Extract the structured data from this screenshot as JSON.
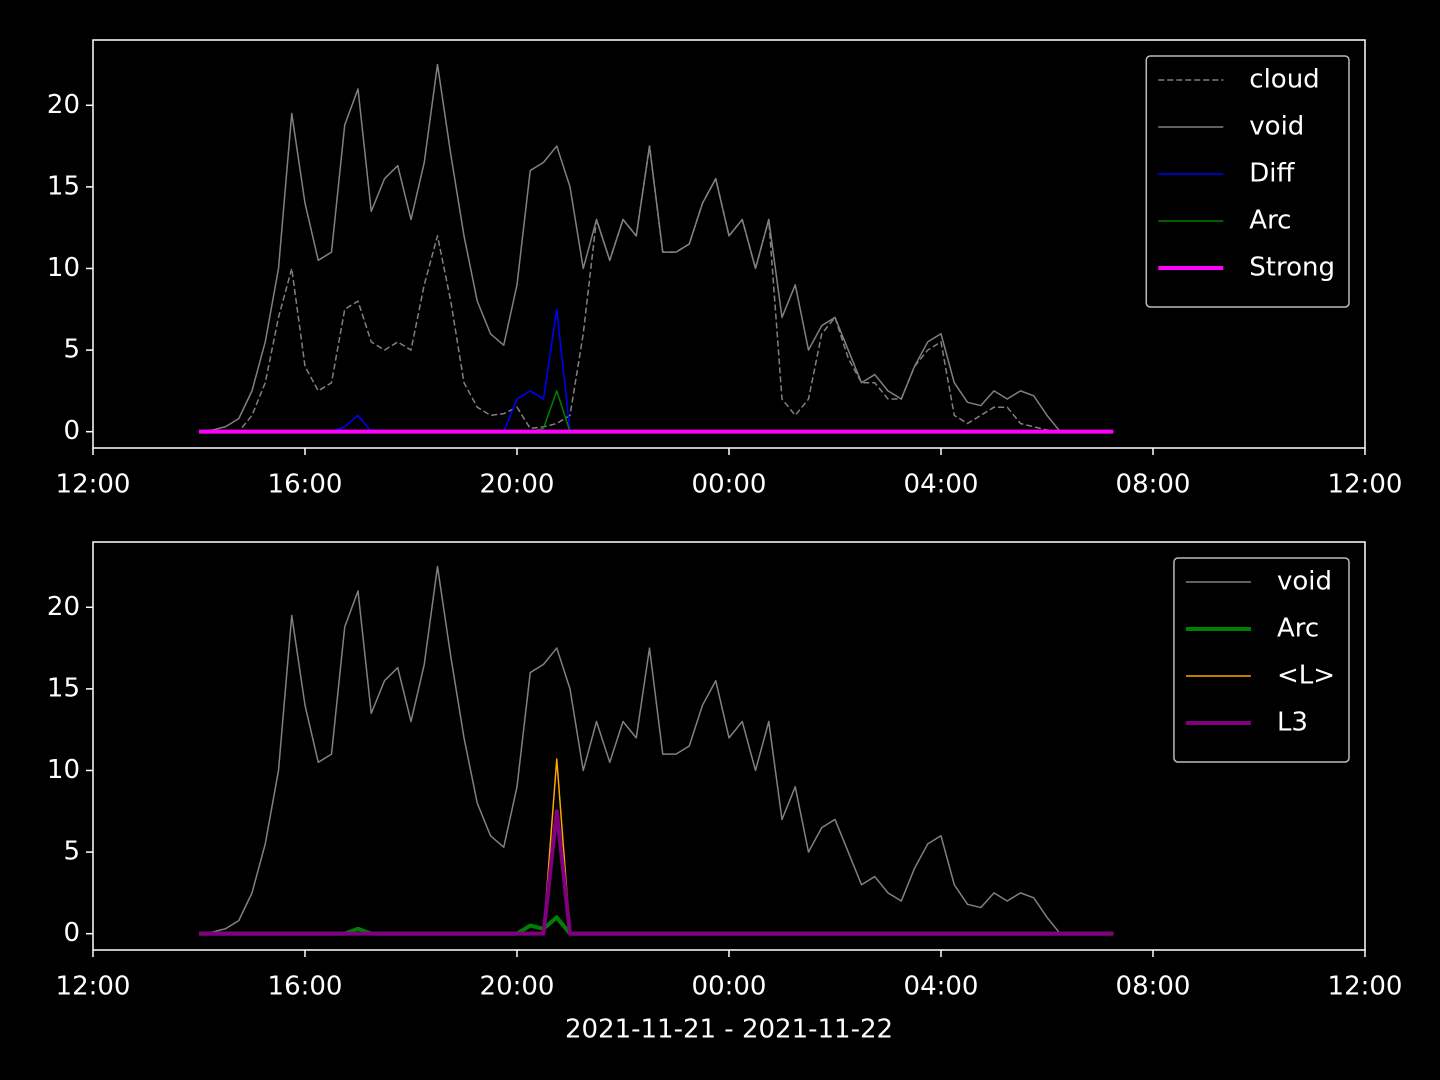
{
  "chart_data": [
    {
      "type": "line",
      "legend": "upper right",
      "xlim": [
        0,
        24
      ],
      "ylim": [
        -1,
        24
      ],
      "xticks": [
        {
          "value": 0,
          "label": "12:00"
        },
        {
          "value": 4,
          "label": "16:00"
        },
        {
          "value": 8,
          "label": "20:00"
        },
        {
          "value": 12,
          "label": "00:00"
        },
        {
          "value": 16,
          "label": "04:00"
        },
        {
          "value": 20,
          "label": "08:00"
        },
        {
          "value": 24,
          "label": "12:00"
        }
      ],
      "yticks": [
        0,
        5,
        10,
        15,
        20
      ],
      "x": [
        2,
        2.25,
        2.5,
        2.75,
        3,
        3.25,
        3.5,
        3.75,
        4,
        4.25,
        4.5,
        4.75,
        5,
        5.25,
        5.5,
        5.75,
        6,
        6.25,
        6.5,
        6.75,
        7,
        7.25,
        7.5,
        7.75,
        8,
        8.25,
        8.5,
        8.75,
        9,
        9.25,
        9.5,
        9.75,
        10,
        10.25,
        10.5,
        10.75,
        11,
        11.25,
        11.5,
        11.75,
        12,
        12.25,
        12.5,
        12.75,
        13,
        13.25,
        13.5,
        13.75,
        14,
        14.25,
        14.5,
        14.75,
        15,
        15.25,
        15.5,
        15.75,
        16,
        16.25,
        16.5,
        16.75,
        17,
        17.25,
        17.5,
        17.75,
        18,
        18.25,
        18.5,
        18.75,
        19,
        19.25
      ],
      "series": [
        {
          "name": "cloud",
          "color": "#808080",
          "width": 1.5,
          "dash": true,
          "values": [
            0,
            0,
            0,
            0,
            1,
            3,
            7,
            10,
            4,
            2.5,
            3,
            7.5,
            8,
            5.5,
            5,
            5.5,
            5,
            9,
            12,
            8,
            3,
            1.5,
            1,
            1.1,
            1.5,
            0.2,
            0.3,
            0.5,
            1,
            6,
            13,
            10.5,
            13,
            12,
            17.5,
            11,
            11,
            11.5,
            14,
            15.5,
            12,
            13,
            10,
            13,
            2,
            1,
            2,
            6,
            7,
            4.5,
            3,
            3,
            2,
            2,
            4,
            5,
            5.5,
            1,
            0.5,
            1,
            1.5,
            1.5,
            0.5,
            0.3,
            0.1,
            0,
            0,
            0,
            0,
            0
          ]
        },
        {
          "name": "void",
          "color": "#808080",
          "width": 1.5,
          "dash": false,
          "values": [
            0,
            0.1,
            0.3,
            0.8,
            2.5,
            5.5,
            10,
            19.5,
            14,
            10.5,
            11,
            18.8,
            21,
            13.5,
            15.5,
            16.3,
            13,
            16.5,
            22.5,
            17,
            12,
            8,
            6,
            5.3,
            9,
            16,
            16.5,
            17.5,
            15,
            10,
            13,
            10.5,
            13,
            12,
            17.5,
            11,
            11,
            11.5,
            14,
            15.5,
            12,
            13,
            10,
            13,
            7,
            9,
            5,
            6.5,
            7,
            5,
            3,
            3.5,
            2.5,
            2,
            4,
            5.5,
            6,
            3,
            1.8,
            1.6,
            2.5,
            2,
            2.5,
            2.2,
            1,
            0,
            0,
            0,
            0,
            0
          ]
        },
        {
          "name": "Diff",
          "color": "#0000ff",
          "width": 1.5,
          "dash": false,
          "values": [
            0,
            0,
            0,
            0,
            0,
            0,
            0,
            0,
            0,
            0,
            0,
            0.3,
            1,
            0,
            0,
            0,
            0,
            0,
            0,
            0,
            0,
            0,
            0,
            0,
            2,
            2.5,
            2,
            7.5,
            0,
            0,
            0,
            0,
            0,
            0,
            0,
            0,
            0,
            0,
            0,
            0,
            0,
            0,
            0,
            0,
            0,
            0,
            0,
            0,
            0,
            0,
            0,
            0,
            0,
            0,
            0,
            0,
            0,
            0,
            0,
            0,
            0,
            0,
            0,
            0,
            0,
            0,
            0,
            0,
            0,
            0
          ]
        },
        {
          "name": "Arc",
          "color": "#008000",
          "width": 1.5,
          "dash": false,
          "values": [
            0,
            0,
            0,
            0,
            0,
            0,
            0,
            0,
            0,
            0,
            0,
            0,
            0,
            0,
            0,
            0,
            0,
            0,
            0,
            0,
            0,
            0,
            0,
            0,
            0,
            0,
            0.2,
            2.5,
            0,
            0,
            0,
            0,
            0,
            0,
            0,
            0,
            0,
            0,
            0,
            0,
            0,
            0,
            0,
            0,
            0,
            0,
            0,
            0,
            0,
            0,
            0,
            0,
            0,
            0,
            0,
            0,
            0,
            0,
            0,
            0,
            0,
            0,
            0,
            0,
            0,
            0,
            0,
            0,
            0,
            0
          ]
        },
        {
          "name": "Strong",
          "color": "#ff00ff",
          "width": 4,
          "dash": false,
          "values": [
            0,
            0,
            0,
            0,
            0,
            0,
            0,
            0,
            0,
            0,
            0,
            0,
            0,
            0,
            0,
            0,
            0,
            0,
            0,
            0,
            0,
            0,
            0,
            0,
            0,
            0,
            0,
            0,
            0,
            0,
            0,
            0,
            0,
            0,
            0,
            0,
            0,
            0,
            0,
            0,
            0,
            0,
            0,
            0,
            0,
            0,
            0,
            0,
            0,
            0,
            0,
            0,
            0,
            0,
            0,
            0,
            0,
            0,
            0,
            0,
            0,
            0,
            0,
            0,
            0,
            0,
            0,
            0,
            0,
            0
          ]
        }
      ]
    },
    {
      "type": "line",
      "legend": "upper right",
      "xlabel": "2021-11-21 - 2021-11-22",
      "xlim": [
        0,
        24
      ],
      "ylim": [
        -1,
        24
      ],
      "xticks": [
        {
          "value": 0,
          "label": "12:00"
        },
        {
          "value": 4,
          "label": "16:00"
        },
        {
          "value": 8,
          "label": "20:00"
        },
        {
          "value": 12,
          "label": "00:00"
        },
        {
          "value": 16,
          "label": "04:00"
        },
        {
          "value": 20,
          "label": "08:00"
        },
        {
          "value": 24,
          "label": "12:00"
        }
      ],
      "yticks": [
        0,
        5,
        10,
        15,
        20
      ],
      "x": [
        2,
        2.25,
        2.5,
        2.75,
        3,
        3.25,
        3.5,
        3.75,
        4,
        4.25,
        4.5,
        4.75,
        5,
        5.25,
        5.5,
        5.75,
        6,
        6.25,
        6.5,
        6.75,
        7,
        7.25,
        7.5,
        7.75,
        8,
        8.25,
        8.5,
        8.75,
        9,
        9.25,
        9.5,
        9.75,
        10,
        10.25,
        10.5,
        10.75,
        11,
        11.25,
        11.5,
        11.75,
        12,
        12.25,
        12.5,
        12.75,
        13,
        13.25,
        13.5,
        13.75,
        14,
        14.25,
        14.5,
        14.75,
        15,
        15.25,
        15.5,
        15.75,
        16,
        16.25,
        16.5,
        16.75,
        17,
        17.25,
        17.5,
        17.75,
        18,
        18.25,
        18.5,
        18.75,
        19,
        19.25
      ],
      "series": [
        {
          "name": "void",
          "color": "#808080",
          "width": 1.5,
          "dash": false,
          "values": [
            0,
            0.1,
            0.3,
            0.8,
            2.5,
            5.5,
            10,
            19.5,
            14,
            10.5,
            11,
            18.8,
            21,
            13.5,
            15.5,
            16.3,
            13,
            16.5,
            22.5,
            17,
            12,
            8,
            6,
            5.3,
            9,
            16,
            16.5,
            17.5,
            15,
            10,
            13,
            10.5,
            13,
            12,
            17.5,
            11,
            11,
            11.5,
            14,
            15.5,
            12,
            13,
            10,
            13,
            7,
            9,
            5,
            6.5,
            7,
            5,
            3,
            3.5,
            2.5,
            2,
            4,
            5.5,
            6,
            3,
            1.8,
            1.6,
            2.5,
            2,
            2.5,
            2.2,
            1,
            0,
            0,
            0,
            0,
            0
          ]
        },
        {
          "name": "Arc",
          "color": "#008000",
          "width": 4,
          "dash": false,
          "values": [
            0,
            0,
            0,
            0,
            0,
            0,
            0,
            0,
            0,
            0,
            0,
            0,
            0.3,
            0,
            0,
            0,
            0,
            0,
            0,
            0,
            0,
            0,
            0,
            0,
            0,
            0.5,
            0.3,
            1,
            0,
            0,
            0,
            0,
            0,
            0,
            0,
            0,
            0,
            0,
            0,
            0,
            0,
            0,
            0,
            0,
            0,
            0,
            0,
            0,
            0,
            0,
            0,
            0,
            0,
            0,
            0,
            0,
            0,
            0,
            0,
            0,
            0,
            0,
            0,
            0,
            0,
            0,
            0,
            0,
            0,
            0
          ]
        },
        {
          "name": "<L>",
          "color": "#ffa500",
          "width": 1.5,
          "dash": false,
          "values": [
            0,
            0,
            0,
            0,
            0,
            0,
            0,
            0,
            0,
            0,
            0,
            0,
            0,
            0,
            0,
            0,
            0,
            0,
            0,
            0,
            0,
            0,
            0,
            0,
            0,
            0,
            0,
            10.7,
            0,
            0,
            0,
            0,
            0,
            0,
            0,
            0,
            0,
            0,
            0,
            0,
            0,
            0,
            0,
            0,
            0,
            0,
            0,
            0,
            0,
            0,
            0,
            0,
            0,
            0,
            0,
            0,
            0,
            0,
            0,
            0,
            0,
            0,
            0,
            0,
            0,
            0,
            0,
            0,
            0,
            0
          ]
        },
        {
          "name": "L3",
          "color": "#800080",
          "width": 4,
          "dash": false,
          "values": [
            0,
            0,
            0,
            0,
            0,
            0,
            0,
            0,
            0,
            0,
            0,
            0,
            0,
            0,
            0,
            0,
            0,
            0,
            0,
            0,
            0,
            0,
            0,
            0,
            0,
            0,
            0,
            7.5,
            0,
            0,
            0,
            0,
            0,
            0,
            0,
            0,
            0,
            0,
            0,
            0,
            0,
            0,
            0,
            0,
            0,
            0,
            0,
            0,
            0,
            0,
            0,
            0,
            0,
            0,
            0,
            0,
            0,
            0,
            0,
            0,
            0,
            0,
            0,
            0,
            0,
            0,
            0,
            0,
            0,
            0
          ]
        }
      ]
    }
  ]
}
